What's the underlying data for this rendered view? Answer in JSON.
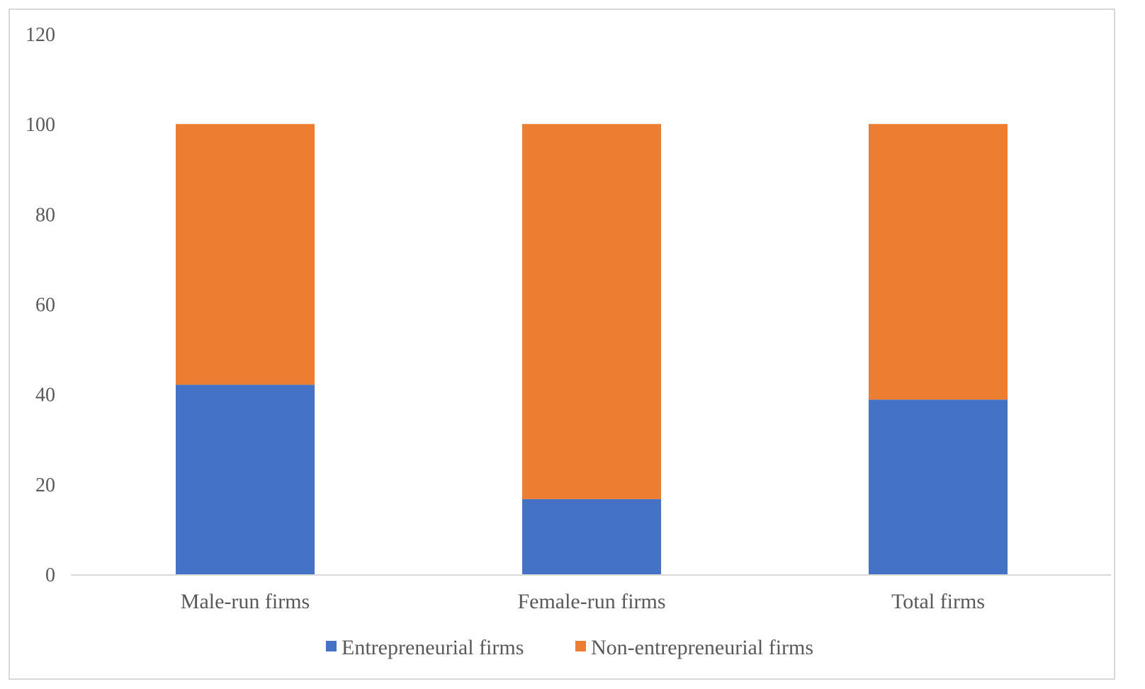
{
  "chart_data": {
    "type": "bar",
    "stacked": true,
    "categories": [
      "Male-run firms",
      "Female-run firms",
      "Total firms"
    ],
    "series": [
      {
        "name": "Entrepreneurial firms",
        "color": "#4472c4",
        "values": [
          42.1,
          16.7,
          38.8
        ]
      },
      {
        "name": "Non-entrepreneurial firms",
        "color": "#ed7d31",
        "values": [
          57.9,
          83.3,
          61.2
        ]
      }
    ],
    "y_ticks": [
      0,
      20,
      40,
      60,
      80,
      100,
      120
    ],
    "ylim": [
      0,
      120
    ],
    "grid": false,
    "legend_position": "bottom",
    "title": "",
    "xlabel": "",
    "ylabel": ""
  }
}
